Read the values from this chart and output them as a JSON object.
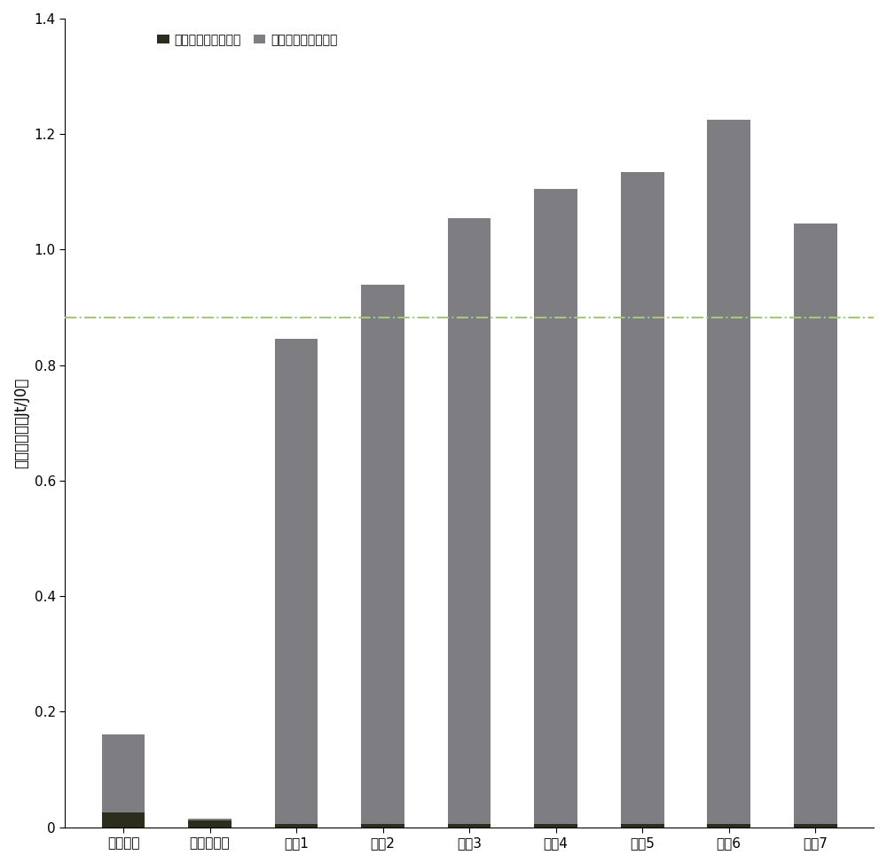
{
  "categories": [
    "物理清洗",
    "商业清洗剂",
    "案例1",
    "案例2",
    "案例3",
    "案例4",
    "案例5",
    "案例6",
    "案例7"
  ],
  "series1_values": [
    0.025,
    0.012,
    0.005,
    0.005,
    0.005,
    0.005,
    0.005,
    0.005,
    0.005
  ],
  "series2_values": [
    0.135,
    0.003,
    0.84,
    0.935,
    1.05,
    1.1,
    1.13,
    1.22,
    1.04
  ],
  "series1_label": "污染后的归一化通量",
  "series2_label": "清洗后的通量恢复率",
  "series1_color": "#2d2d1e",
  "series2_color": "#7d7d82",
  "hline_y": 0.882,
  "hline_color": "#a8c878",
  "hline_style": "-.",
  "ylabel": "通量恢复率（Jt/J0）",
  "ylim": [
    0,
    1.4
  ],
  "yticks": [
    0,
    0.2,
    0.4,
    0.6,
    0.8,
    1.0,
    1.2,
    1.4
  ],
  "background_color": "#ffffff",
  "bar_width": 0.5,
  "legend_fontsize": 10,
  "axis_fontsize": 12,
  "tick_fontsize": 11
}
